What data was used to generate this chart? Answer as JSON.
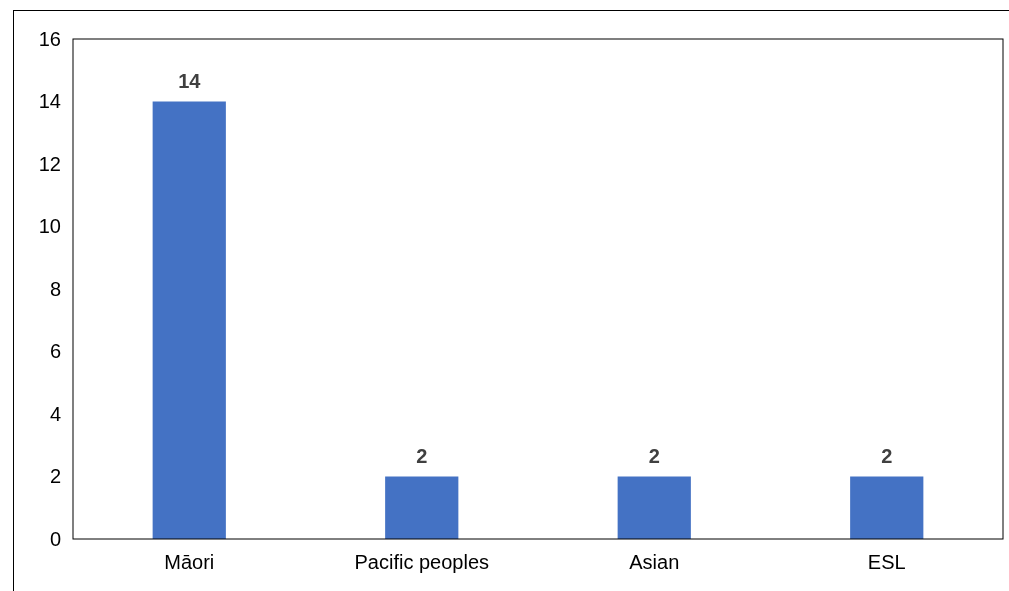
{
  "chart_data": {
    "type": "bar",
    "categories": [
      "Māori",
      "Pacific peoples",
      "Asian",
      "ESL"
    ],
    "values": [
      14,
      2,
      2,
      2
    ],
    "color": "#4472c4",
    "ylim": [
      0,
      16
    ],
    "yticks": [
      0,
      2,
      4,
      6,
      8,
      10,
      12,
      14,
      16
    ],
    "grid": false,
    "data_labels": true
  }
}
